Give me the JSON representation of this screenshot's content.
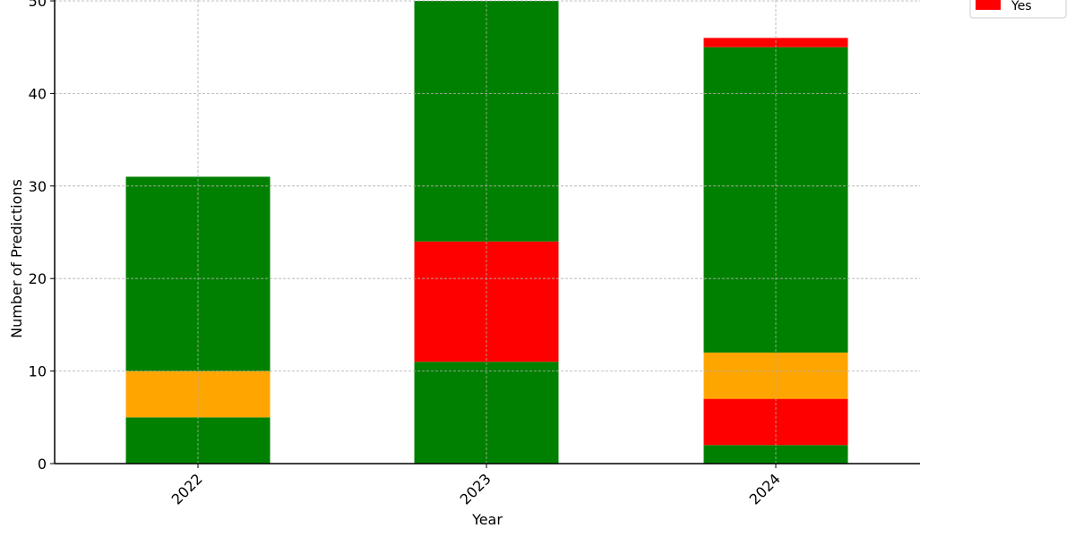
{
  "chart_data": {
    "type": "bar",
    "stacked": true,
    "categories": [
      "2022",
      "2023",
      "2024"
    ],
    "xlabel": "Year",
    "ylabel": "Number of Predictions",
    "ylim": [
      0,
      50
    ],
    "yticks": [
      0,
      10,
      20,
      30,
      40,
      50
    ],
    "grid": true,
    "legend_position": "top-right, outside plot",
    "segments": [
      [
        {
          "from": 0,
          "to": 5,
          "color": "#008000"
        },
        {
          "from": 5,
          "to": 10,
          "color": "#ffa500"
        },
        {
          "from": 10,
          "to": 31,
          "color": "#008000"
        }
      ],
      [
        {
          "from": 0,
          "to": 11,
          "color": "#008000"
        },
        {
          "from": 11,
          "to": 24,
          "color": "#ff0000"
        },
        {
          "from": 24,
          "to": 50,
          "color": "#008000"
        }
      ],
      [
        {
          "from": 0,
          "to": 2,
          "color": "#008000"
        },
        {
          "from": 2,
          "to": 7,
          "color": "#ff0000"
        },
        {
          "from": 7,
          "to": 12,
          "color": "#ffa500"
        },
        {
          "from": 12,
          "to": 45,
          "color": "#008000"
        },
        {
          "from": 45,
          "to": 46,
          "color": "#ff0000"
        }
      ]
    ],
    "legend": [
      {
        "label": "Yes",
        "color": "#ff0000"
      }
    ]
  }
}
